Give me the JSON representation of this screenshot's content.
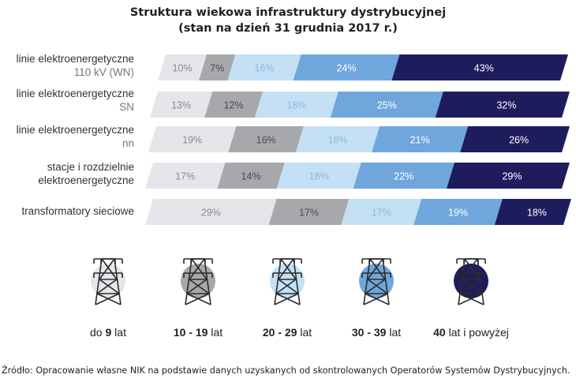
{
  "chart_data": {
    "type": "bar",
    "stacked": true,
    "orientation": "horizontal",
    "title_line1": "Struktura wiekowa infrastruktury dystrybucyjnej",
    "title_line2": "(stan na dzień 31 grudnia 2017 r.)",
    "categories": [
      {
        "line1": "linie elektroenergetyczne",
        "line2": "110 kV (WN)"
      },
      {
        "line1": "linie elektroenergetyczne",
        "line2": "SN"
      },
      {
        "line1": "linie elektroenergetyczne",
        "line2": "nn"
      },
      {
        "line1": "stacje i rozdzielnie",
        "line2": "elektroenergetyczne"
      },
      {
        "line1": "transformatory sieciowe",
        "line2": ""
      }
    ],
    "series": [
      {
        "name": "do 9 lat",
        "color": "#e4e6ea",
        "values": [
          10,
          13,
          19,
          17,
          29
        ]
      },
      {
        "name": "10 - 19 lat",
        "color": "#a7a8ab",
        "values": [
          7,
          12,
          16,
          14,
          17
        ]
      },
      {
        "name": "20 - 29 lat",
        "color": "#c3e0f5",
        "values": [
          16,
          18,
          18,
          18,
          17
        ]
      },
      {
        "name": "30 - 39 lat",
        "color": "#6fa7dc",
        "values": [
          24,
          25,
          21,
          22,
          19
        ]
      },
      {
        "name": "40 lat i powyżej",
        "color": "#1f1c5e",
        "values": [
          43,
          32,
          26,
          29,
          18
        ]
      }
    ],
    "value_suffix": "%",
    "legend": [
      {
        "bold": "",
        "rest": "do ",
        "bold_after": "9",
        "tail": " lat"
      },
      {
        "bold": "10 - 19",
        "rest": "",
        "bold_after": "",
        "tail": " lat"
      },
      {
        "bold": "20 - 29",
        "rest": "",
        "bold_after": "",
        "tail": " lat"
      },
      {
        "bold": "30 - 39",
        "rest": "",
        "bold_after": "",
        "tail": " lat"
      },
      {
        "bold": "40",
        "rest": "",
        "bold_after": "",
        "tail": " lat i powyżej"
      }
    ],
    "legend_position": "bottom"
  },
  "source": "Źródło: Opracowanie własne NIK na podstawie danych uzyskanych od skontrolowanych Operatorów Systemów Dystrybucyjnych."
}
